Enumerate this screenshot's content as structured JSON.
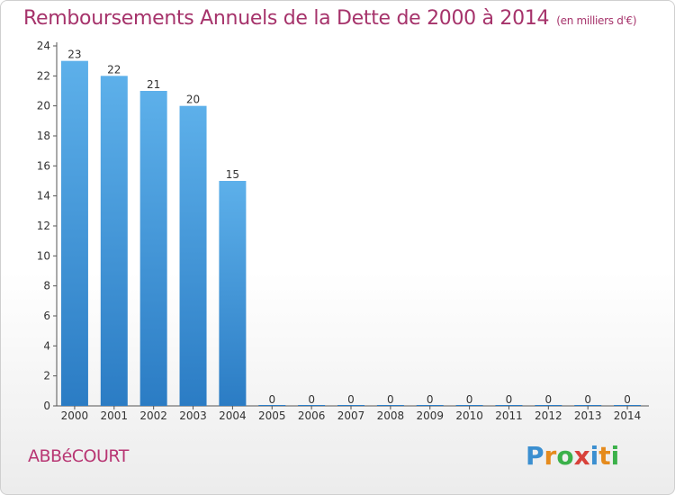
{
  "chart_data": {
    "type": "bar",
    "title": "Remboursements Annuels de la Dette de 2000 à 2014",
    "subtitle": "(en milliers d'€)",
    "categories": [
      "2000",
      "2001",
      "2002",
      "2003",
      "2004",
      "2005",
      "2006",
      "2007",
      "2008",
      "2009",
      "2010",
      "2011",
      "2012",
      "2013",
      "2014"
    ],
    "values": [
      23,
      22,
      21,
      20,
      15,
      0,
      0,
      0,
      0,
      0,
      0,
      0,
      0,
      0,
      0
    ],
    "ylim": [
      0,
      24
    ],
    "yticks": [
      0,
      2,
      4,
      6,
      8,
      10,
      12,
      14,
      16,
      18,
      20,
      22,
      24
    ],
    "xlabel": "",
    "ylabel": "",
    "bar_color": "#3a8fd6"
  },
  "commune": "ABBéCOURT",
  "logo": {
    "letters": [
      "P",
      "r",
      "o",
      "x",
      "i",
      "t",
      "i"
    ],
    "colors": [
      "#3b8fd0",
      "#e58b1d",
      "#3bb14a",
      "#d8413a",
      "#3b8fd0",
      "#e58b1d",
      "#3bb14a"
    ]
  }
}
